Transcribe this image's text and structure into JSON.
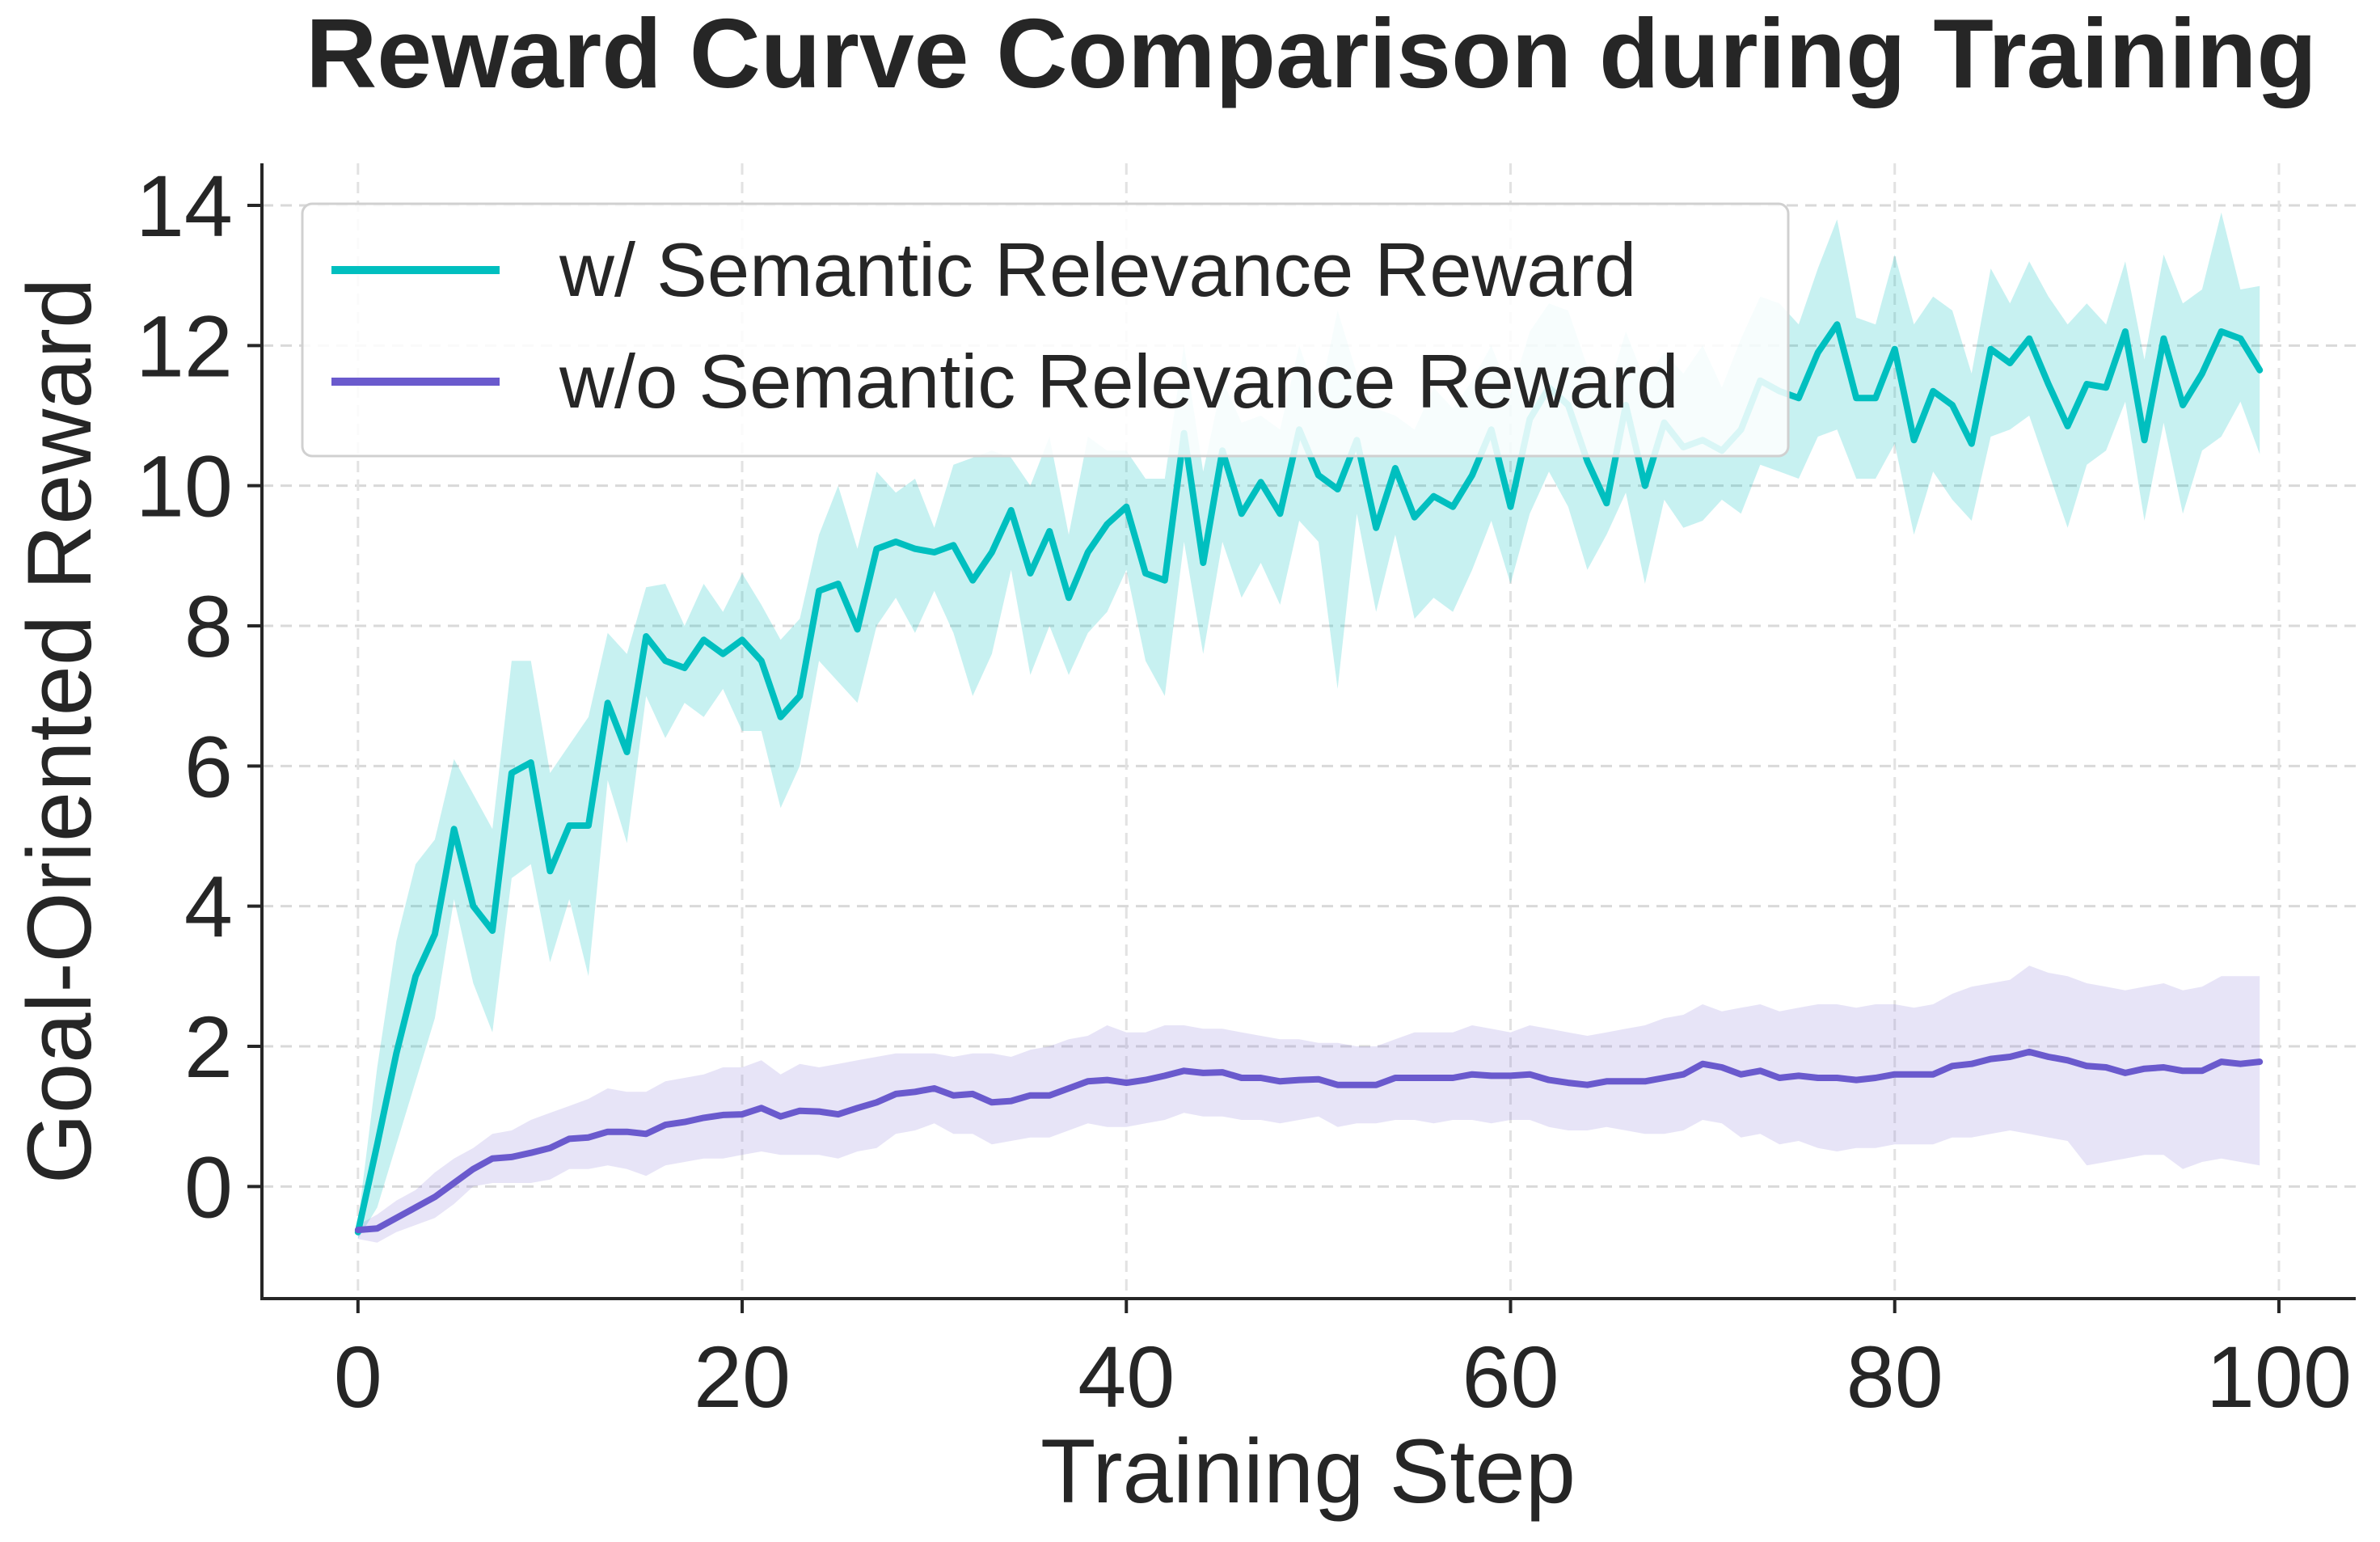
{
  "chart_data": {
    "type": "line",
    "title": "Reward Curve Comparison during Training",
    "xlabel": "Training Step",
    "ylabel": "Goal-Oriented Reward",
    "xlim": [
      -5,
      104
    ],
    "ylim": [
      -1.6,
      14.6
    ],
    "xticks": [
      0,
      20,
      40,
      60,
      80,
      100
    ],
    "yticks": [
      0,
      2,
      4,
      6,
      8,
      10,
      12,
      14
    ],
    "xtick_labels": [
      "0",
      "20",
      "40",
      "60",
      "80",
      "100"
    ],
    "ytick_labels": [
      "0",
      "2",
      "4",
      "6",
      "8",
      "10",
      "12",
      "14"
    ],
    "grid": true,
    "legend_position": "top-left",
    "series": [
      {
        "name": "w/ Semantic Relevance Reward",
        "color": "#00bfbf",
        "band_color": "#00bfbf",
        "mean": [
          -0.65,
          0.6,
          1.9,
          3.0,
          3.6,
          5.1,
          4.0,
          3.65,
          5.9,
          6.05,
          4.5,
          5.15,
          5.15,
          6.9,
          6.2,
          7.85,
          7.5,
          7.4,
          7.8,
          7.6,
          7.8,
          7.5,
          6.7,
          7.0,
          8.5,
          8.6,
          7.95,
          9.1,
          9.2,
          9.1,
          9.05,
          9.15,
          8.65,
          9.05,
          9.65,
          8.75,
          9.35,
          8.4,
          9.05,
          9.45,
          9.7,
          8.75,
          8.65,
          10.75,
          8.9,
          10.5,
          9.6,
          10.05,
          9.6,
          10.8,
          10.15,
          9.95,
          10.65,
          9.4,
          10.25,
          9.55,
          9.85,
          9.7,
          10.15,
          10.8,
          9.7,
          10.95,
          11.4,
          11.15,
          10.35,
          9.75,
          11.15,
          10.0,
          10.9,
          10.55,
          10.65,
          10.5,
          10.8,
          11.5,
          11.35,
          11.25,
          11.9,
          12.3,
          11.25,
          11.25,
          11.95,
          10.65,
          11.35,
          11.15,
          10.6,
          11.95,
          11.75,
          12.1,
          11.45,
          10.85,
          11.45,
          11.4,
          12.2,
          10.65,
          12.1,
          11.15,
          11.6,
          12.2,
          12.1,
          11.65
        ],
        "upper": [
          -0.5,
          1.7,
          3.5,
          4.6,
          4.95,
          6.1,
          5.6,
          5.1,
          7.5,
          7.5,
          5.9,
          6.3,
          6.7,
          7.9,
          7.6,
          8.55,
          8.6,
          8.0,
          8.6,
          8.2,
          8.75,
          8.3,
          7.8,
          8.1,
          9.3,
          10.0,
          9.1,
          10.2,
          9.9,
          10.1,
          9.4,
          10.3,
          10.4,
          10.5,
          10.4,
          10.0,
          10.7,
          9.3,
          10.7,
          10.5,
          10.5,
          10.1,
          10.1,
          12.0,
          10.2,
          11.5,
          10.9,
          11.0,
          10.8,
          12.0,
          11.2,
          12.5,
          11.6,
          11.1,
          11.0,
          10.8,
          11.4,
          11.1,
          11.5,
          12.0,
          11.3,
          12.2,
          12.6,
          12.5,
          11.7,
          11.3,
          12.2,
          11.5,
          11.9,
          11.6,
          12.0,
          11.4,
          12.1,
          12.7,
          12.6,
          12.3,
          13.1,
          13.8,
          12.4,
          12.3,
          13.3,
          12.3,
          12.7,
          12.5,
          11.6,
          13.1,
          12.6,
          13.2,
          12.7,
          12.3,
          12.6,
          12.3,
          13.2,
          11.8,
          13.3,
          12.6,
          12.8,
          13.9,
          12.8,
          12.85
        ],
        "lower": [
          -0.75,
          -0.3,
          0.6,
          1.5,
          2.4,
          4.1,
          2.9,
          2.2,
          4.4,
          4.6,
          3.2,
          4.1,
          3.0,
          5.8,
          4.9,
          7.0,
          6.4,
          6.9,
          6.7,
          7.1,
          6.5,
          6.5,
          5.4,
          6.0,
          7.5,
          7.2,
          6.9,
          8.0,
          8.4,
          7.9,
          8.5,
          7.9,
          7.0,
          7.6,
          8.8,
          7.3,
          8.0,
          7.3,
          7.9,
          8.2,
          8.8,
          7.5,
          7.0,
          9.2,
          7.6,
          9.2,
          8.4,
          8.9,
          8.3,
          9.5,
          9.2,
          7.1,
          9.6,
          8.2,
          9.3,
          8.1,
          8.4,
          8.2,
          8.8,
          9.5,
          8.6,
          9.6,
          10.2,
          9.7,
          8.8,
          9.3,
          9.9,
          8.6,
          9.8,
          9.4,
          9.5,
          9.8,
          9.6,
          10.3,
          10.2,
          10.1,
          10.7,
          10.8,
          10.1,
          10.1,
          10.6,
          9.3,
          10.2,
          9.8,
          9.5,
          10.7,
          10.8,
          11.0,
          10.2,
          9.4,
          10.3,
          10.5,
          11.2,
          9.5,
          10.9,
          9.6,
          10.5,
          10.7,
          11.2,
          10.45
        ]
      },
      {
        "name": "w/o Semantic Relevance Reward",
        "color": "#6a5acd",
        "band_color": "#9384dc",
        "mean": [
          -0.62,
          -0.6,
          -0.45,
          -0.3,
          -0.15,
          0.05,
          0.25,
          0.4,
          0.42,
          0.48,
          0.55,
          0.68,
          0.7,
          0.78,
          0.78,
          0.75,
          0.88,
          0.92,
          0.98,
          1.02,
          1.03,
          1.12,
          1.0,
          1.08,
          1.07,
          1.03,
          1.12,
          1.2,
          1.32,
          1.35,
          1.4,
          1.3,
          1.32,
          1.2,
          1.22,
          1.3,
          1.3,
          1.4,
          1.5,
          1.52,
          1.48,
          1.52,
          1.58,
          1.65,
          1.62,
          1.63,
          1.55,
          1.55,
          1.5,
          1.52,
          1.53,
          1.45,
          1.45,
          1.45,
          1.55,
          1.55,
          1.55,
          1.55,
          1.6,
          1.58,
          1.58,
          1.6,
          1.52,
          1.48,
          1.45,
          1.5,
          1.5,
          1.5,
          1.55,
          1.6,
          1.75,
          1.7,
          1.6,
          1.65,
          1.55,
          1.58,
          1.55,
          1.55,
          1.52,
          1.55,
          1.6,
          1.6,
          1.6,
          1.72,
          1.75,
          1.82,
          1.85,
          1.92,
          1.85,
          1.8,
          1.72,
          1.7,
          1.62,
          1.68,
          1.7,
          1.65,
          1.65,
          1.78,
          1.75,
          1.78
        ],
        "upper": [
          -0.55,
          -0.4,
          -0.2,
          -0.05,
          0.2,
          0.4,
          0.55,
          0.75,
          0.8,
          0.95,
          1.05,
          1.15,
          1.25,
          1.4,
          1.35,
          1.35,
          1.5,
          1.55,
          1.6,
          1.7,
          1.7,
          1.8,
          1.6,
          1.75,
          1.7,
          1.75,
          1.8,
          1.85,
          1.9,
          1.9,
          1.9,
          1.85,
          1.9,
          1.9,
          1.85,
          1.95,
          2.0,
          2.1,
          2.15,
          2.3,
          2.2,
          2.2,
          2.3,
          2.3,
          2.25,
          2.25,
          2.2,
          2.15,
          2.1,
          2.1,
          2.05,
          2.05,
          2.0,
          2.0,
          2.1,
          2.2,
          2.2,
          2.2,
          2.3,
          2.25,
          2.2,
          2.3,
          2.25,
          2.2,
          2.15,
          2.2,
          2.25,
          2.3,
          2.4,
          2.45,
          2.6,
          2.5,
          2.55,
          2.6,
          2.5,
          2.55,
          2.6,
          2.6,
          2.55,
          2.6,
          2.6,
          2.55,
          2.6,
          2.75,
          2.85,
          2.9,
          2.95,
          3.15,
          3.05,
          3.0,
          2.9,
          2.85,
          2.8,
          2.85,
          2.9,
          2.8,
          2.85,
          3.0,
          3.0,
          3.0
        ],
        "lower": [
          -0.75,
          -0.8,
          -0.65,
          -0.55,
          -0.45,
          -0.25,
          0.0,
          0.05,
          0.05,
          0.05,
          0.1,
          0.25,
          0.25,
          0.3,
          0.25,
          0.15,
          0.3,
          0.35,
          0.4,
          0.4,
          0.45,
          0.5,
          0.45,
          0.45,
          0.45,
          0.4,
          0.5,
          0.55,
          0.75,
          0.8,
          0.9,
          0.75,
          0.75,
          0.6,
          0.65,
          0.7,
          0.7,
          0.8,
          0.9,
          0.85,
          0.85,
          0.9,
          0.95,
          1.05,
          1.0,
          1.0,
          0.95,
          0.95,
          0.9,
          0.95,
          1.0,
          0.85,
          0.9,
          0.9,
          0.95,
          0.95,
          0.9,
          0.95,
          0.95,
          0.9,
          0.95,
          0.95,
          0.85,
          0.8,
          0.8,
          0.85,
          0.8,
          0.75,
          0.75,
          0.8,
          0.95,
          0.9,
          0.7,
          0.75,
          0.6,
          0.65,
          0.55,
          0.5,
          0.55,
          0.55,
          0.6,
          0.6,
          0.6,
          0.7,
          0.7,
          0.75,
          0.8,
          0.75,
          0.7,
          0.65,
          0.3,
          0.35,
          0.4,
          0.45,
          0.45,
          0.25,
          0.35,
          0.4,
          0.35,
          0.3
        ]
      }
    ]
  }
}
